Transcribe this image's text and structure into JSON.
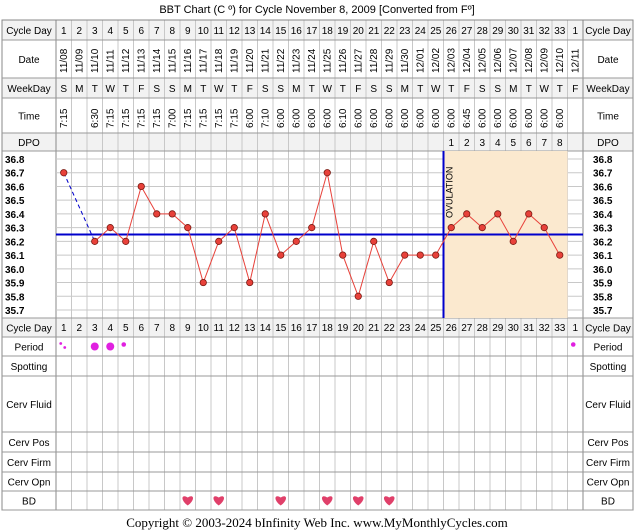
{
  "title": "BBT Chart (C º) for Cycle November 8, 2009  [Converted from Fº]",
  "row_labels": {
    "cycle_day": "Cycle Day",
    "date": "Date",
    "weekday": "WeekDay",
    "time": "Time",
    "dpo": "DPO",
    "period": "Period",
    "spotting": "Spotting",
    "cerv_fluid": "Cerv Fluid",
    "cerv_pos": "Cerv Pos",
    "cerv_firm": "Cerv Firm",
    "cerv_opn": "Cerv Opn",
    "bd": "BD"
  },
  "cycle_days": [
    "1",
    "2",
    "3",
    "4",
    "5",
    "6",
    "7",
    "8",
    "9",
    "10",
    "11",
    "12",
    "13",
    "14",
    "15",
    "16",
    "17",
    "18",
    "19",
    "20",
    "21",
    "22",
    "23",
    "24",
    "25",
    "26",
    "27",
    "28",
    "29",
    "30",
    "31",
    "32",
    "33",
    "1"
  ],
  "dates": [
    "11/08",
    "11/09",
    "11/10",
    "11/11",
    "11/12",
    "11/13",
    "11/14",
    "11/15",
    "11/16",
    "11/17",
    "11/18",
    "11/19",
    "11/20",
    "11/21",
    "11/22",
    "11/23",
    "11/24",
    "11/25",
    "11/26",
    "11/27",
    "11/28",
    "11/29",
    "11/30",
    "12/01",
    "12/02",
    "12/03",
    "12/04",
    "12/05",
    "12/06",
    "12/07",
    "12/08",
    "12/09",
    "12/10",
    "12/11"
  ],
  "weekdays": [
    "S",
    "M",
    "T",
    "W",
    "T",
    "F",
    "S",
    "S",
    "M",
    "T",
    "W",
    "T",
    "F",
    "S",
    "S",
    "M",
    "T",
    "W",
    "T",
    "F",
    "S",
    "S",
    "M",
    "T",
    "W",
    "T",
    "F",
    "S",
    "S",
    "M",
    "T",
    "W",
    "T",
    "F"
  ],
  "times": [
    "7:15",
    "",
    "6:30",
    "7:15",
    "7:15",
    "7:15",
    "7:15",
    "7:00",
    "7:15",
    "7:15",
    "7:15",
    "7:15",
    "6:00",
    "7:10",
    "6:00",
    "6:00",
    "6:00",
    "6:00",
    "6:10",
    "6:00",
    "6:00",
    "6:00",
    "6:00",
    "6:00",
    "6:00",
    "6:00",
    "6:45",
    "6:00",
    "6:00",
    "6:00",
    "6:00",
    "6:00",
    "6:00",
    ""
  ],
  "dpo": [
    "",
    "",
    "",
    "",
    "",
    "",
    "",
    "",
    "",
    "",
    "",
    "",
    "",
    "",
    "",
    "",
    "",
    "",
    "",
    "",
    "",
    "",
    "",
    "",
    "",
    "1",
    "2",
    "3",
    "4",
    "5",
    "6",
    "7",
    "8",
    ""
  ],
  "period": [
    "spotting",
    "",
    "heavy",
    "heavy",
    "light",
    "",
    "",
    "",
    "",
    "",
    "",
    "",
    "",
    "",
    "",
    "",
    "",
    "",
    "",
    "",
    "",
    "",
    "",
    "",
    "",
    "",
    "",
    "",
    "",
    "",
    "",
    "",
    "",
    "light"
  ],
  "bd_days": [
    9,
    11,
    15,
    18,
    20,
    22
  ],
  "ovulation_label": "OVULATION",
  "footer": "Copyright © 2003-2024 bInfinity Web Inc.    www.MyMonthlyCycles.com",
  "colors": {
    "temp_line": "#e8413a",
    "cover_line": "#0000cc",
    "luteal_fill": "#fbe9cf",
    "period_dot": "#e020e0",
    "bd_heart": "#e0406a",
    "grid": "#c8c8c8",
    "row_bg": "#f2f2f2"
  },
  "chart_data": {
    "type": "line",
    "x": [
      1,
      2,
      3,
      4,
      5,
      6,
      7,
      8,
      9,
      10,
      11,
      12,
      13,
      14,
      15,
      16,
      17,
      18,
      19,
      20,
      21,
      22,
      23,
      24,
      25,
      26,
      27,
      28,
      29,
      30,
      31,
      32,
      33
    ],
    "temperatures": [
      36.7,
      null,
      36.2,
      36.3,
      36.2,
      36.6,
      36.4,
      36.4,
      36.3,
      35.9,
      36.2,
      36.3,
      35.9,
      36.4,
      36.1,
      36.2,
      36.3,
      36.7,
      36.1,
      35.8,
      36.2,
      35.9,
      36.1,
      36.1,
      36.1,
      36.3,
      36.4,
      36.3,
      36.4,
      36.2,
      36.4,
      36.3,
      36.1
    ],
    "y_ticks": [
      "36.8",
      "36.7",
      "36.6",
      "36.5",
      "36.4",
      "36.3",
      "36.2",
      "36.1",
      "36.0",
      "35.9",
      "35.8",
      "35.7"
    ],
    "ylim": [
      35.7,
      36.8
    ],
    "coverline": 36.25,
    "ovulation_day": 25,
    "grid": true
  }
}
